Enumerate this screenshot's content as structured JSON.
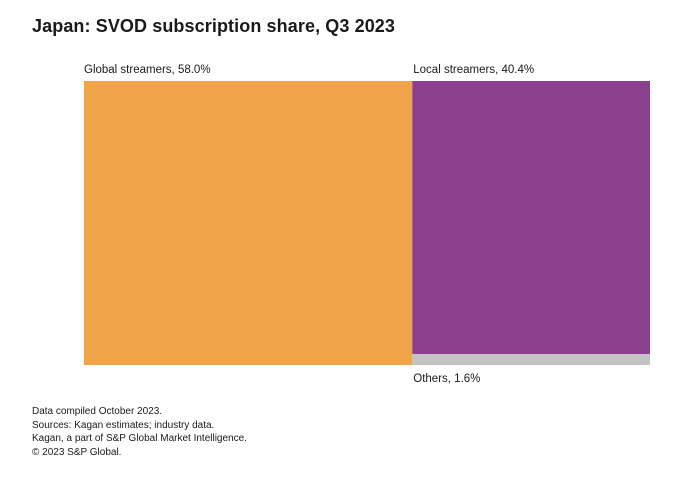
{
  "chart_data": {
    "type": "treemap",
    "title": "Japan: SVOD subscription share, Q3 2023",
    "unit": "%",
    "segments": [
      {
        "name": "Global streamers",
        "value": 58.0,
        "label": "Global streamers, 58.0%",
        "color": "#f0a54a"
      },
      {
        "name": "Local streamers",
        "value": 40.4,
        "label": "Local streamers, 40.4%",
        "color": "#8b3f8f"
      },
      {
        "name": "Others",
        "value": 1.6,
        "label": "Others, 1.6%",
        "color": "#c4c4c4"
      }
    ]
  },
  "notes": [
    "Data compiled October 2023.",
    "Sources: Kagan estimates; industry data.",
    "Kagan, a part of S&P Global Market Intelligence.",
    "© 2023 S&P Global."
  ]
}
